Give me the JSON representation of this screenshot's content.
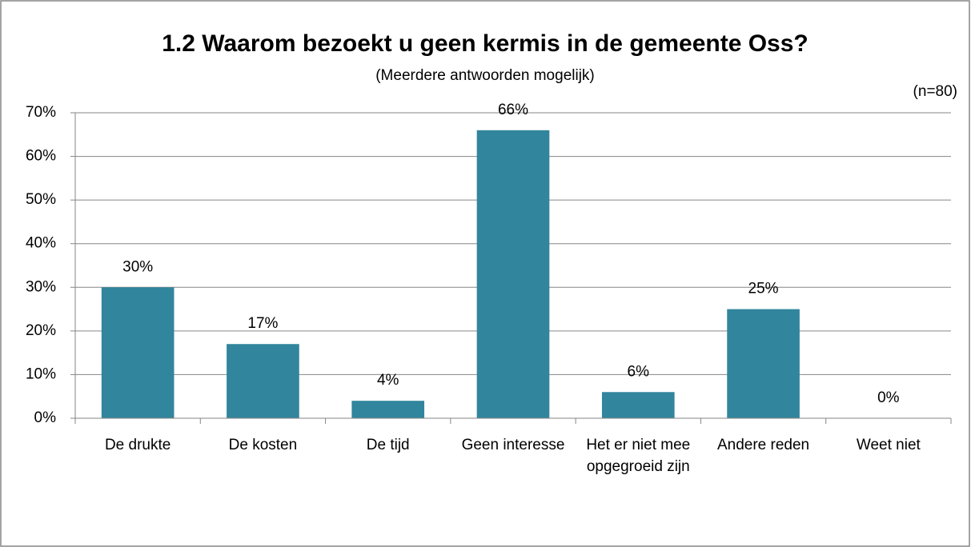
{
  "chart_data": {
    "type": "bar",
    "title": "1.2 Waarom bezoekt u geen kermis in de gemeente Oss?",
    "subtitle": "(Meerdere antwoorden mogelijk)",
    "annotation": "(n=80)",
    "categories": [
      "De drukte",
      "De kosten",
      "De tijd",
      "Geen interesse",
      "Het er niet mee opgegroeid zijn",
      "Andere reden",
      "Weet niet"
    ],
    "values": [
      30,
      17,
      4,
      66,
      6,
      25,
      0
    ],
    "value_labels": [
      "30%",
      "17%",
      "4%",
      "66%",
      "6%",
      "25%",
      "0%"
    ],
    "color": "#31859c",
    "ylim": [
      0,
      70
    ],
    "yticks": [
      {
        "value": 0,
        "label": "0%"
      },
      {
        "value": 10,
        "label": "10%"
      },
      {
        "value": 20,
        "label": "20%"
      },
      {
        "value": 30,
        "label": "30%"
      },
      {
        "value": 40,
        "label": "40%"
      },
      {
        "value": 50,
        "label": "50%"
      },
      {
        "value": 60,
        "label": "60%"
      },
      {
        "value": 70,
        "label": "70%"
      }
    ],
    "grid": true
  }
}
